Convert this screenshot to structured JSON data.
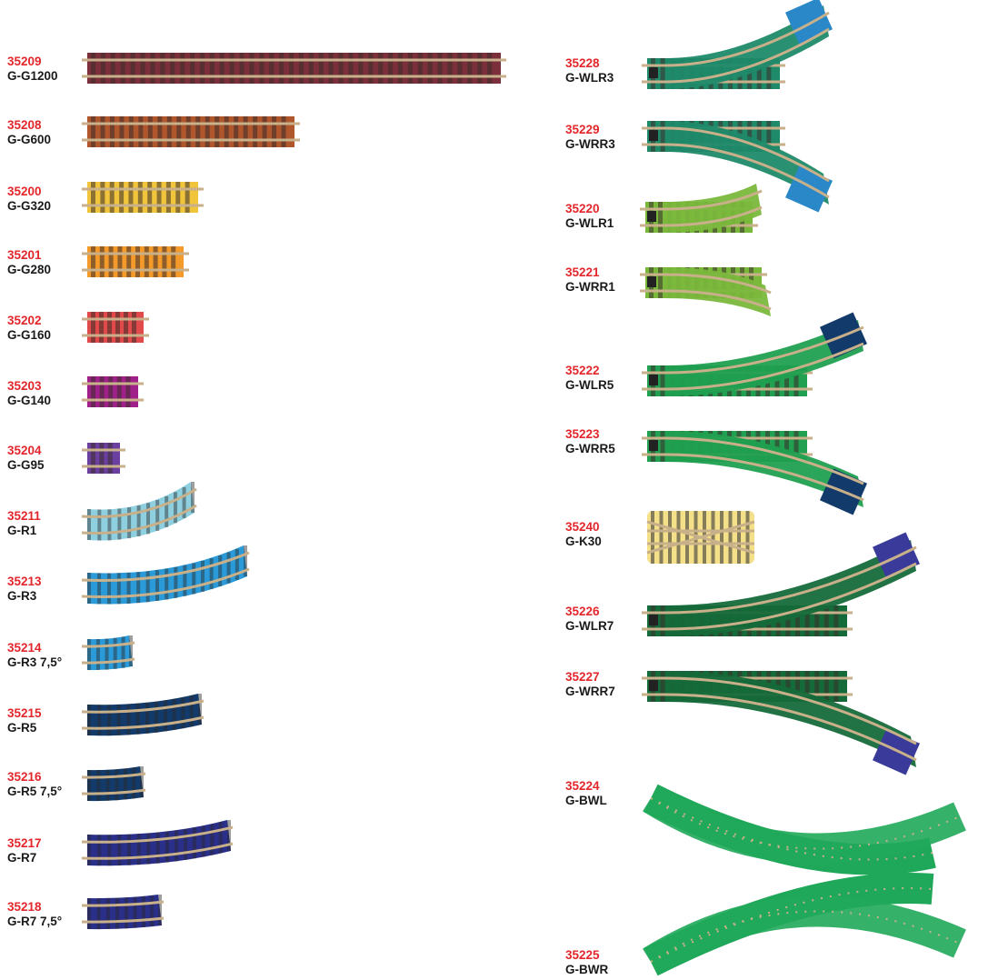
{
  "tracks_left": [
    {
      "code": "35209",
      "name": "G-G1200",
      "color": "#7a2f3a",
      "kind": "straight"
    },
    {
      "code": "35208",
      "name": "G-G600",
      "color": "#b0562d",
      "kind": "straight"
    },
    {
      "code": "35200",
      "name": "G-G320",
      "color": "#f0c53c",
      "kind": "straight"
    },
    {
      "code": "35201",
      "name": "G-G280",
      "color": "#f39a2a",
      "kind": "straight"
    },
    {
      "code": "35202",
      "name": "G-G160",
      "color": "#e04a4a",
      "kind": "straight"
    },
    {
      "code": "35203",
      "name": "G-G140",
      "color": "#a0208a",
      "kind": "straight"
    },
    {
      "code": "35204",
      "name": "G-G95",
      "color": "#6a3fa0",
      "kind": "straight"
    },
    {
      "code": "35211",
      "name": "G-R1",
      "color": "#8fd0e0",
      "kind": "curve"
    },
    {
      "code": "35213",
      "name": "G-R3",
      "color": "#2b9ad8",
      "kind": "curve"
    },
    {
      "code": "35214",
      "name": "G-R3 7,5°",
      "color": "#2b9ad8",
      "kind": "curve"
    },
    {
      "code": "35215",
      "name": "G-R5",
      "color": "#123a6a",
      "kind": "curve"
    },
    {
      "code": "35216",
      "name": "G-R5 7,5°",
      "color": "#123a6a",
      "kind": "curve"
    },
    {
      "code": "35217",
      "name": "G-R7",
      "color": "#2a2f8a",
      "kind": "curve"
    },
    {
      "code": "35218",
      "name": "G-R7 7,5°",
      "color": "#2a2f8a",
      "kind": "curve"
    }
  ],
  "tracks_right": [
    {
      "code": "35228",
      "name": "G-WLR3",
      "color": "#1f8a6a",
      "branch": "#2b88c8",
      "kind": "switch-left"
    },
    {
      "code": "35229",
      "name": "G-WRR3",
      "color": "#1f8a6a",
      "branch": "#2b88c8",
      "kind": "switch-right"
    },
    {
      "code": "35220",
      "name": "G-WLR1",
      "color": "#7ab83c",
      "kind": "switch-left"
    },
    {
      "code": "35221",
      "name": "G-WRR1",
      "color": "#7ab83c",
      "kind": "switch-right"
    },
    {
      "code": "35222",
      "name": "G-WLR5",
      "color": "#20a050",
      "branch": "#123a6a",
      "kind": "switch-left"
    },
    {
      "code": "35223",
      "name": "G-WRR5",
      "color": "#20a050",
      "branch": "#123a6a",
      "kind": "switch-right"
    },
    {
      "code": "35240",
      "name": "G-K30",
      "color": "#f5e08a",
      "kind": "crossing"
    },
    {
      "code": "35226",
      "name": "G-WLR7",
      "color": "#156a3a",
      "branch": "#3a3a9a",
      "kind": "switch-left"
    },
    {
      "code": "35227",
      "name": "G-WRR7",
      "color": "#156a3a",
      "branch": "#3a3a9a",
      "kind": "switch-right"
    },
    {
      "code": "35224",
      "name": "G-BWL",
      "color": "#20a85a",
      "kind": "curved-switch-left"
    },
    {
      "code": "35225",
      "name": "G-BWR",
      "color": "#20a85a",
      "kind": "curved-switch-right"
    }
  ]
}
